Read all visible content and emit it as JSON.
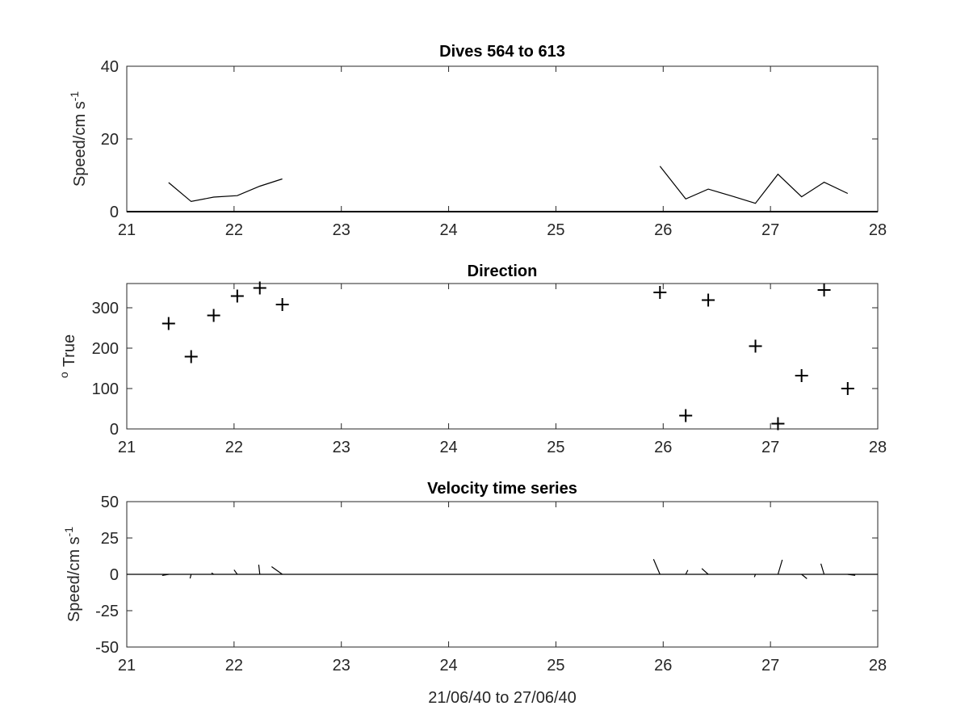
{
  "chart_data": [
    {
      "type": "line",
      "title": "Dives 564 to 613",
      "ylabel": "Speed/cm s",
      "ylabel_superscript": "-1",
      "xlabel": "",
      "xlim": [
        21,
        28
      ],
      "ylim": [
        0,
        40
      ],
      "xticks": [
        "21",
        "22",
        "23",
        "24",
        "25",
        "26",
        "27",
        "28"
      ],
      "yticks": [
        "0",
        "20",
        "40"
      ],
      "segments": [
        {
          "x": [
            21.39,
            21.6,
            21.81,
            22.03,
            22.24,
            22.45
          ],
          "y": [
            8.0,
            2.8,
            4.0,
            4.4,
            7.0,
            9.0
          ]
        },
        {
          "x": [
            25.97,
            26.21,
            26.42,
            26.64,
            26.86,
            27.07,
            27.29,
            27.5,
            27.72
          ],
          "y": [
            12.5,
            3.5,
            6.2,
            4.3,
            2.3,
            10.3,
            4.1,
            8.1,
            5.0
          ]
        }
      ],
      "color": "#000000"
    },
    {
      "type": "scatter",
      "title": "Direction",
      "ylabel": "True",
      "ylabel_prefix_superscript": "o",
      "xlabel": "",
      "xlim": [
        21,
        28
      ],
      "ylim": [
        0,
        360
      ],
      "xticks": [
        "21",
        "22",
        "23",
        "24",
        "25",
        "26",
        "27",
        "28"
      ],
      "yticks": [
        "0",
        "100",
        "200",
        "300"
      ],
      "x": [
        21.39,
        21.6,
        21.81,
        22.03,
        22.24,
        22.45,
        25.97,
        26.21,
        26.42,
        26.86,
        27.07,
        27.29,
        27.5,
        27.72
      ],
      "y": [
        261,
        179,
        281,
        329,
        349,
        308,
        338,
        33,
        319,
        205,
        13,
        132,
        344,
        100
      ],
      "marker": "+",
      "color": "#000000"
    },
    {
      "type": "line",
      "title": "Velocity time series",
      "ylabel": "Speed/cm s",
      "ylabel_superscript": "-1",
      "xlabel": "21/06/40 to 27/06/40",
      "xlim": [
        21,
        28
      ],
      "ylim": [
        -50,
        50
      ],
      "xticks": [
        "21",
        "22",
        "23",
        "24",
        "25",
        "26",
        "27",
        "28"
      ],
      "yticks": [
        "-50",
        "-25",
        "0",
        "25",
        "50"
      ],
      "sticks": [
        {
          "x": 21.39,
          "dx": -0.06,
          "dy": -0.8
        },
        {
          "x": 21.6,
          "dx": -0.01,
          "dy": -2.8
        },
        {
          "x": 21.81,
          "dx": -0.02,
          "dy": 1.0
        },
        {
          "x": 22.03,
          "dx": -0.03,
          "dy": 3.1
        },
        {
          "x": 22.24,
          "dx": -0.01,
          "dy": 6.6
        },
        {
          "x": 22.45,
          "dx": -0.1,
          "dy": 5.3
        },
        {
          "x": 25.97,
          "dx": -0.06,
          "dy": 10.4
        },
        {
          "x": 26.21,
          "dx": 0.02,
          "dy": 2.9
        },
        {
          "x": 26.42,
          "dx": -0.06,
          "dy": 4.0
        },
        {
          "x": 26.86,
          "dx": -0.01,
          "dy": -1.9
        },
        {
          "x": 27.07,
          "dx": 0.04,
          "dy": 10.0
        },
        {
          "x": 27.29,
          "dx": 0.05,
          "dy": -3.0
        },
        {
          "x": 27.5,
          "dx": -0.03,
          "dy": 7.3
        },
        {
          "x": 27.72,
          "dx": 0.07,
          "dy": -0.7
        }
      ],
      "color": "#000000"
    }
  ]
}
